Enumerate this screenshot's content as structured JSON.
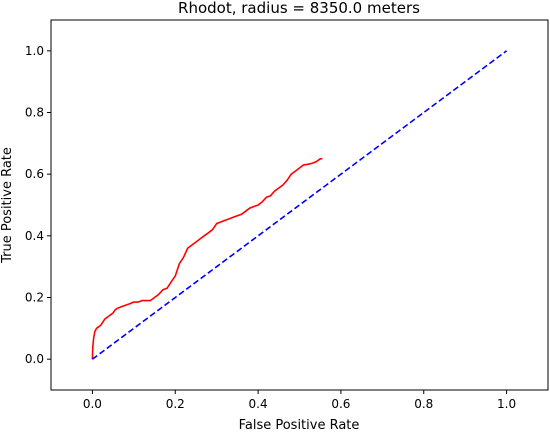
{
  "chart_data": {
    "type": "line",
    "title": "Rhodot, radius = 8350.0 meters",
    "xlabel": "False Positive Rate",
    "ylabel": "True Positive Rate",
    "xlim": [
      -0.1,
      1.1
    ],
    "ylim": [
      -0.1,
      1.1
    ],
    "xticks": [
      0.0,
      0.2,
      0.4,
      0.6,
      0.8,
      1.0
    ],
    "yticks": [
      0.0,
      0.2,
      0.4,
      0.6,
      0.8,
      1.0
    ],
    "xtick_labels": [
      "0.0",
      "0.2",
      "0.4",
      "0.6",
      "0.8",
      "1.0"
    ],
    "ytick_labels": [
      "0.0",
      "0.2",
      "0.4",
      "0.6",
      "0.8",
      "1.0"
    ],
    "grid": false,
    "series": [
      {
        "color": "#ff0000",
        "style": "solid",
        "x": [
          0.0,
          0.001,
          0.003,
          0.006,
          0.01,
          0.02,
          0.03,
          0.04,
          0.05,
          0.055,
          0.06,
          0.07,
          0.08,
          0.09,
          0.1,
          0.11,
          0.12,
          0.13,
          0.14,
          0.15,
          0.16,
          0.17,
          0.18,
          0.19,
          0.2,
          0.21,
          0.22,
          0.23,
          0.24,
          0.25,
          0.26,
          0.27,
          0.28,
          0.29,
          0.3,
          0.31,
          0.32,
          0.33,
          0.34,
          0.35,
          0.36,
          0.37,
          0.38,
          0.39,
          0.4,
          0.41,
          0.42,
          0.43,
          0.44,
          0.45,
          0.46,
          0.47,
          0.48,
          0.49,
          0.5,
          0.51,
          0.52,
          0.53,
          0.54,
          0.55,
          0.555
        ],
        "y": [
          0.0,
          0.04,
          0.07,
          0.09,
          0.1,
          0.11,
          0.13,
          0.14,
          0.15,
          0.16,
          0.165,
          0.17,
          0.175,
          0.18,
          0.185,
          0.185,
          0.19,
          0.19,
          0.19,
          0.2,
          0.21,
          0.225,
          0.23,
          0.25,
          0.27,
          0.31,
          0.33,
          0.36,
          0.37,
          0.38,
          0.39,
          0.4,
          0.41,
          0.42,
          0.44,
          0.445,
          0.45,
          0.455,
          0.46,
          0.465,
          0.47,
          0.48,
          0.49,
          0.495,
          0.5,
          0.51,
          0.525,
          0.53,
          0.545,
          0.555,
          0.565,
          0.58,
          0.6,
          0.61,
          0.62,
          0.63,
          0.632,
          0.635,
          0.64,
          0.65,
          0.65
        ]
      },
      {
        "color": "#0000ff",
        "style": "dashed",
        "x": [
          0.0,
          1.0
        ],
        "y": [
          0.0,
          1.0
        ]
      }
    ]
  }
}
